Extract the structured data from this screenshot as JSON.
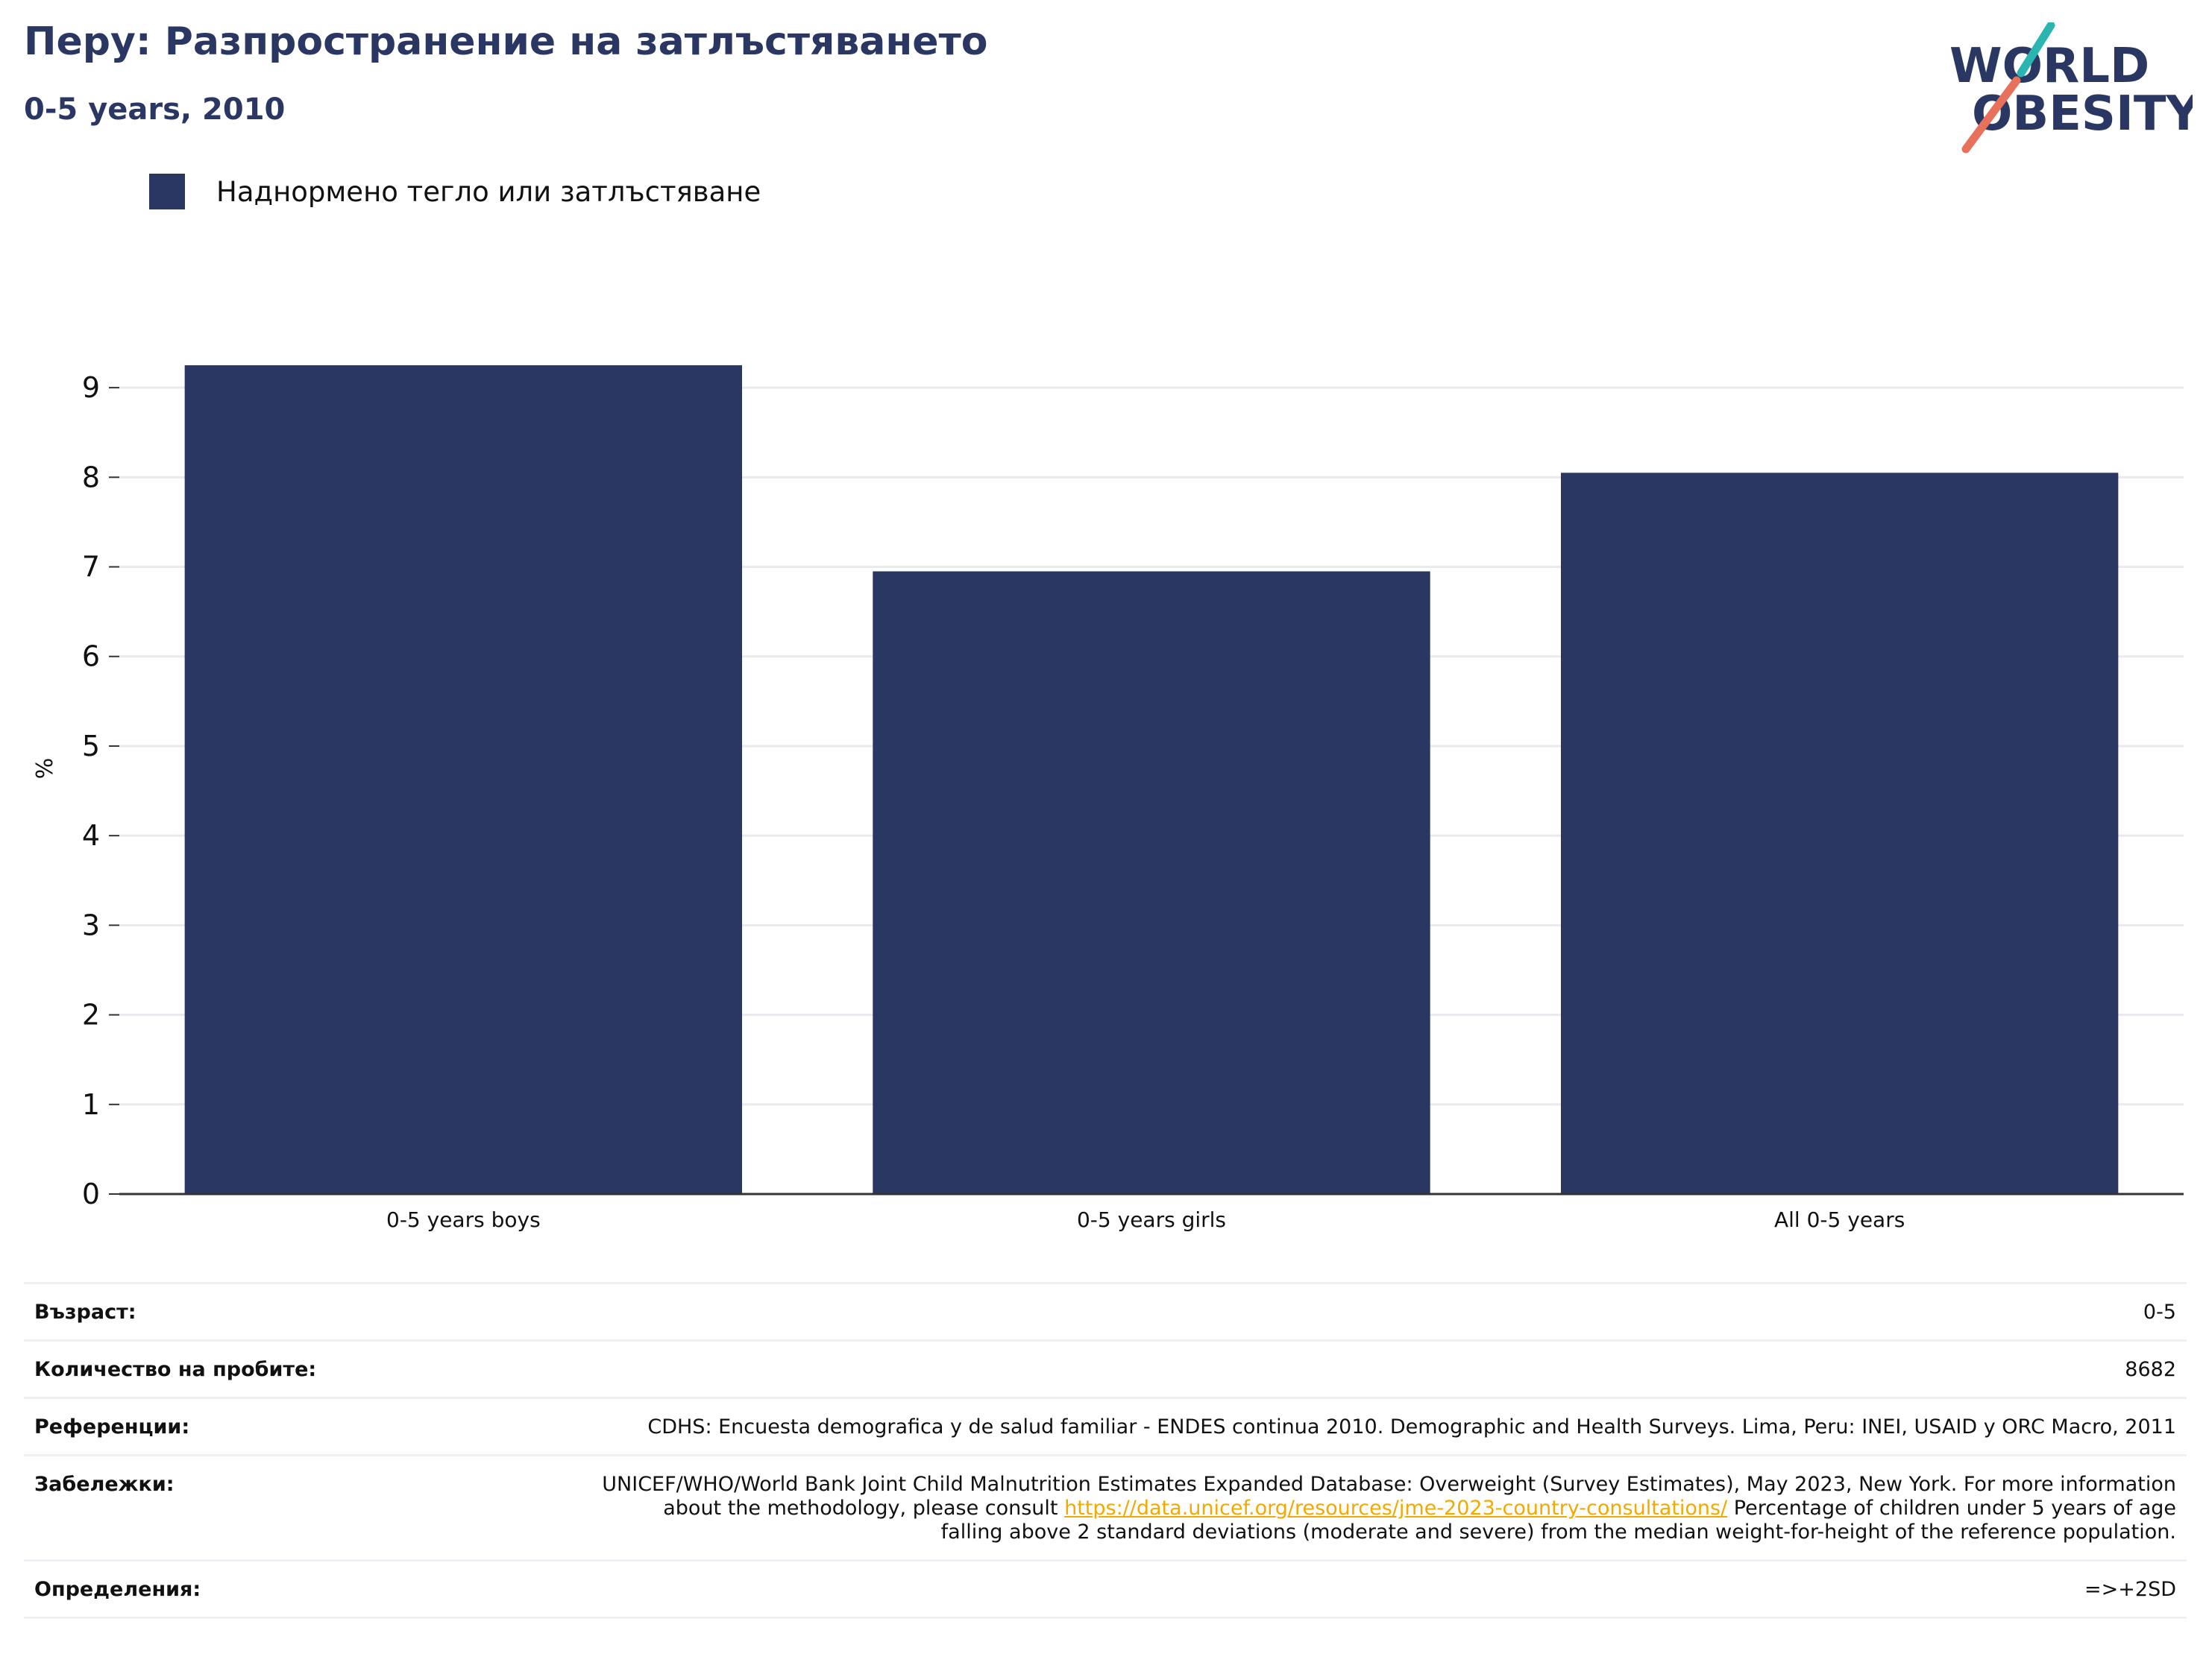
{
  "header": {
    "title": "Перу: Разпространение на затлъстяването",
    "subtitle": "0-5 years, 2010"
  },
  "logo": {
    "line1": "WORLD",
    "line2": "OBESITY",
    "colors": {
      "text": "#2b3763",
      "teal": "#2bb5b0",
      "coral": "#e8715c"
    }
  },
  "colors": {
    "bar": "#2b3763",
    "grid": "#e9eaee",
    "axis": "#333333",
    "link": "#f2a900"
  },
  "chart_data": {
    "type": "bar",
    "categories": [
      "0-5 years boys",
      "0-5 years girls",
      "All 0-5 years"
    ],
    "series": [
      {
        "name": "Наднормено тегло или затлъстяване",
        "values": [
          9.25,
          6.95,
          8.05
        ]
      }
    ],
    "ylabel": "%",
    "ylim": [
      0,
      9.5
    ],
    "yticks": [
      0,
      1,
      2,
      3,
      4,
      5,
      6,
      7,
      8,
      9
    ],
    "grid": true,
    "legend_position": "top-left"
  },
  "info": {
    "age": {
      "label": "Възраст:",
      "value": "0-5"
    },
    "sample": {
      "label": "Количество на пробите:",
      "value": "8682"
    },
    "references": {
      "label": "Референции:",
      "value": "CDHS: Encuesta demografica y de salud familiar - ENDES continua 2010. Demographic and Health Surveys. Lima, Peru: INEI, USAID y ORC Macro, 2011"
    },
    "notes": {
      "label": "Забележки:",
      "text_before": "UNICEF/WHO/World Bank Joint Child Malnutrition Estimates Expanded Database: Overweight (Survey Estimates), May 2023, New York. For more information about the methodology, please consult ",
      "link": "https://data.unicef.org/resources/jme-2023-country-consultations/",
      "text_after": " Percentage of children under 5 years of age falling above 2 standard deviations (moderate and severe) from the median weight-for-height of the reference population."
    },
    "definitions": {
      "label": "Определения:",
      "value": "=>+2SD"
    }
  }
}
